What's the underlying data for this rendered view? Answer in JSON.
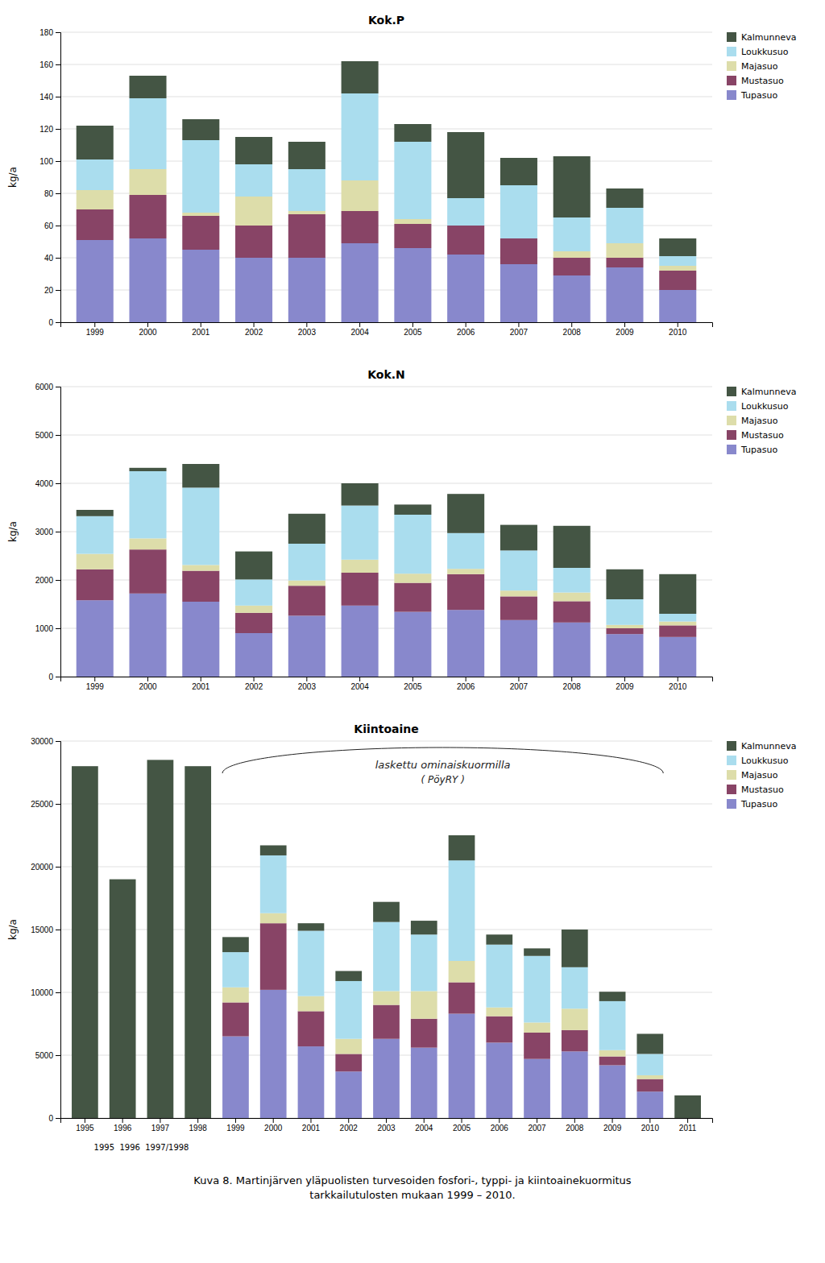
{
  "chart_data": [
    {
      "type": "bar",
      "stacked": true,
      "title": "Kok.P",
      "ylabel": "kg/a",
      "categories": [
        "1999",
        "2000",
        "2001",
        "2002",
        "2003",
        "2004",
        "2005",
        "2006",
        "2007",
        "2008",
        "2009",
        "2010"
      ],
      "ylim": [
        0,
        180
      ],
      "yticks": [
        0,
        20,
        40,
        60,
        80,
        100,
        120,
        140,
        160,
        180
      ],
      "grid": true,
      "legend": "upper right",
      "series": [
        {
          "name": "Tupasuo",
          "color": "#8888cc",
          "values": [
            51,
            52,
            45,
            40,
            40,
            49,
            46,
            42,
            36,
            29,
            34,
            20
          ]
        },
        {
          "name": "Mustasuo",
          "color": "#884466",
          "values": [
            19,
            27,
            21,
            20,
            27,
            20,
            15,
            18,
            16,
            11,
            6,
            12
          ]
        },
        {
          "name": "Majasuo",
          "color": "#ddddaa",
          "values": [
            12,
            16,
            2,
            18,
            2,
            19,
            3,
            0,
            0,
            4,
            9,
            3
          ]
        },
        {
          "name": "Loukkusuo",
          "color": "#aaddee",
          "values": [
            19,
            44,
            45,
            20,
            26,
            54,
            48,
            17,
            33,
            21,
            22,
            6
          ]
        },
        {
          "name": "Kalmunneva",
          "color": "#445544",
          "values": [
            21,
            14,
            13,
            17,
            17,
            20,
            11,
            41,
            17,
            38,
            12,
            11
          ]
        }
      ]
    },
    {
      "type": "bar",
      "stacked": true,
      "title": "Kok.N",
      "ylabel": "kg/a",
      "categories": [
        "1999",
        "2000",
        "2001",
        "2002",
        "2003",
        "2004",
        "2005",
        "2006",
        "2007",
        "2008",
        "2009",
        "2010"
      ],
      "ylim": [
        0,
        6000
      ],
      "yticks": [
        0,
        1000,
        2000,
        3000,
        4000,
        5000,
        6000
      ],
      "grid": true,
      "legend": "upper right",
      "series": [
        {
          "name": "Tupasuo",
          "color": "#8888cc",
          "values": [
            1580,
            1720,
            1550,
            900,
            1260,
            1470,
            1340,
            1380,
            1170,
            1120,
            880,
            820
          ]
        },
        {
          "name": "Mustasuo",
          "color": "#884466",
          "values": [
            640,
            910,
            640,
            420,
            620,
            680,
            600,
            740,
            490,
            440,
            120,
            240
          ]
        },
        {
          "name": "Majasuo",
          "color": "#ddddaa",
          "values": [
            320,
            230,
            120,
            150,
            110,
            270,
            190,
            110,
            120,
            180,
            70,
            80
          ]
        },
        {
          "name": "Loukkusuo",
          "color": "#aaddee",
          "values": [
            780,
            1390,
            1600,
            540,
            760,
            1120,
            1220,
            740,
            830,
            510,
            530,
            160
          ]
        },
        {
          "name": "Kalmunneva",
          "color": "#445544",
          "values": [
            130,
            70,
            490,
            580,
            620,
            460,
            210,
            810,
            530,
            870,
            620,
            820
          ]
        }
      ]
    },
    {
      "type": "bar",
      "stacked": true,
      "title": "Kiintoaine",
      "ylabel": "kg/a",
      "categories": [
        "1995",
        "1996",
        "1997",
        "1998",
        "1999",
        "2000",
        "2001",
        "2002",
        "2003",
        "2004",
        "2005",
        "2006",
        "2007",
        "2008",
        "2009",
        "2010",
        "2011"
      ],
      "ylim": [
        0,
        30000
      ],
      "yticks": [
        0,
        5000,
        10000,
        15000,
        20000,
        25000,
        30000
      ],
      "grid": true,
      "legend": "upper right",
      "annotations": [
        "laskettu ominaiskuormilla",
        "( PöyRY )",
        "1995  1996  1997/1998"
      ],
      "series": [
        {
          "name": "Tupasuo",
          "color": "#8888cc",
          "values": [
            null,
            null,
            null,
            null,
            6500,
            10200,
            5700,
            3700,
            6300,
            5600,
            8300,
            6000,
            4700,
            5300,
            4200,
            2100,
            null
          ]
        },
        {
          "name": "Mustasuo",
          "color": "#884466",
          "values": [
            null,
            null,
            null,
            null,
            2700,
            5300,
            2800,
            1400,
            2700,
            2300,
            2500,
            2100,
            2100,
            1700,
            700,
            1000,
            null
          ]
        },
        {
          "name": "Majasuo",
          "color": "#ddddaa",
          "values": [
            null,
            null,
            null,
            null,
            1200,
            800,
            1200,
            1200,
            1100,
            2200,
            1700,
            700,
            800,
            1700,
            500,
            300,
            null
          ]
        },
        {
          "name": "Loukkusuo",
          "color": "#aaddee",
          "values": [
            null,
            null,
            null,
            null,
            2800,
            4600,
            5200,
            4600,
            5500,
            4500,
            8000,
            5000,
            5300,
            3300,
            3900,
            1700,
            null
          ]
        },
        {
          "name": "Kalmunneva",
          "color": "#445544",
          "values": [
            28000,
            19000,
            28500,
            28000,
            1200,
            800,
            600,
            800,
            1600,
            1100,
            2000,
            800,
            600,
            3000,
            750,
            1600,
            1800
          ]
        }
      ]
    }
  ],
  "caption": "Kuva 8. Martinjärven yläpuolisten turvesoiden fosfori-, typpi- ja kiintoainekuormitus\ntarkkailutulosten mukaan 1999 – 2010."
}
